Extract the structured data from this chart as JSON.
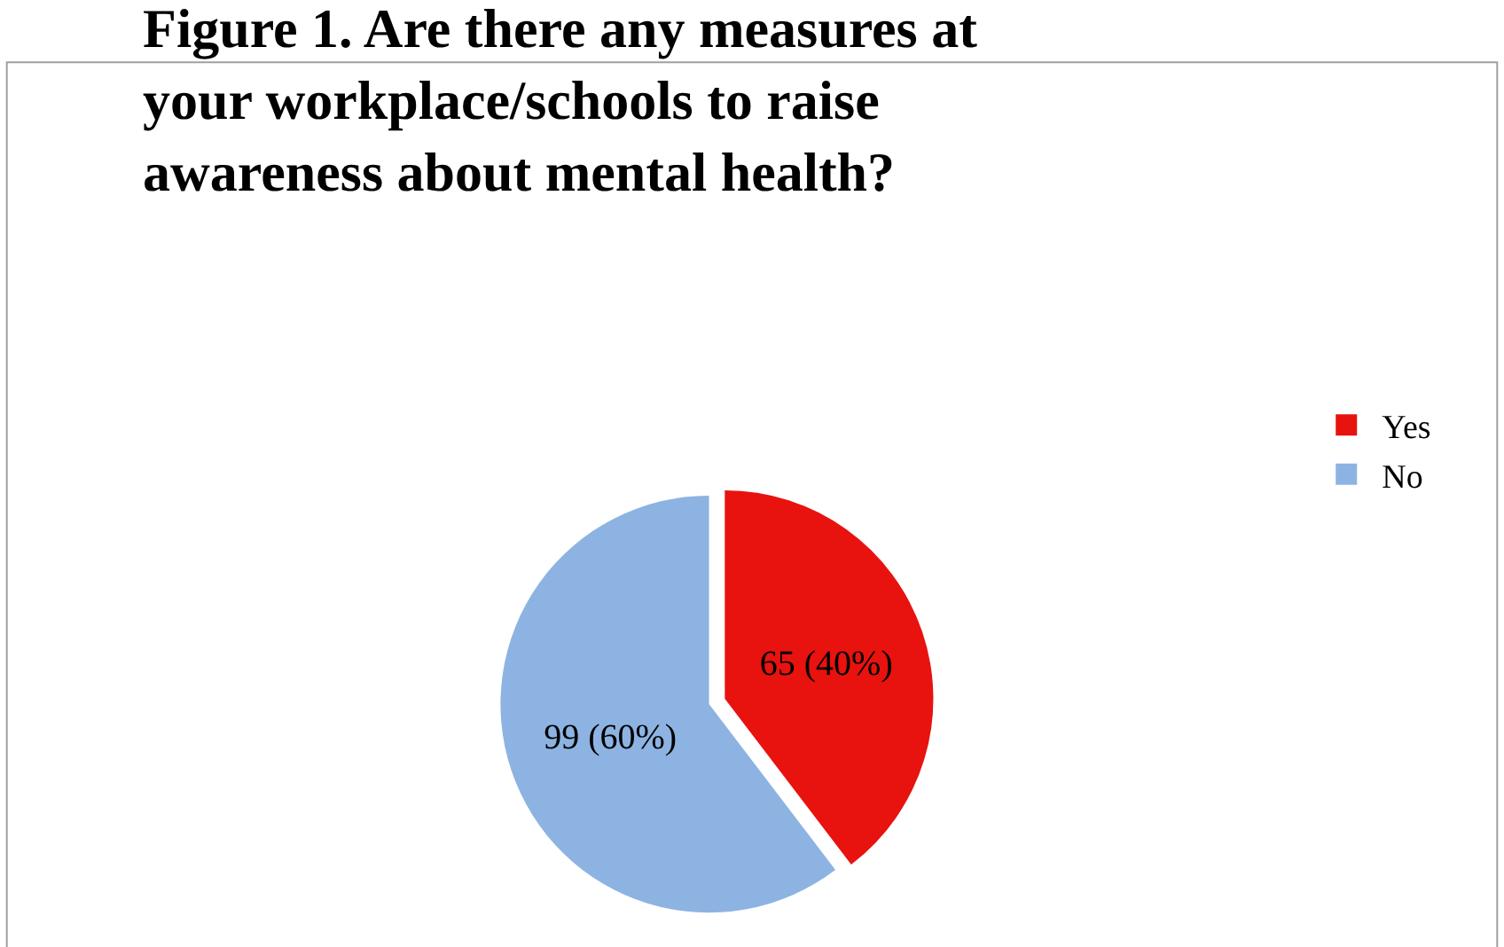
{
  "chart_data": {
    "type": "pie",
    "title": "Figure 1. Are there any measures at your workplace/schools to raise awareness about mental health?",
    "categories": [
      "Yes",
      "No"
    ],
    "values": [
      65,
      99
    ],
    "colors": [
      "#e8120e",
      "#8db3e2"
    ],
    "value_labels": [
      "65 (40%)",
      "99 (60%)"
    ],
    "legend": "right"
  }
}
